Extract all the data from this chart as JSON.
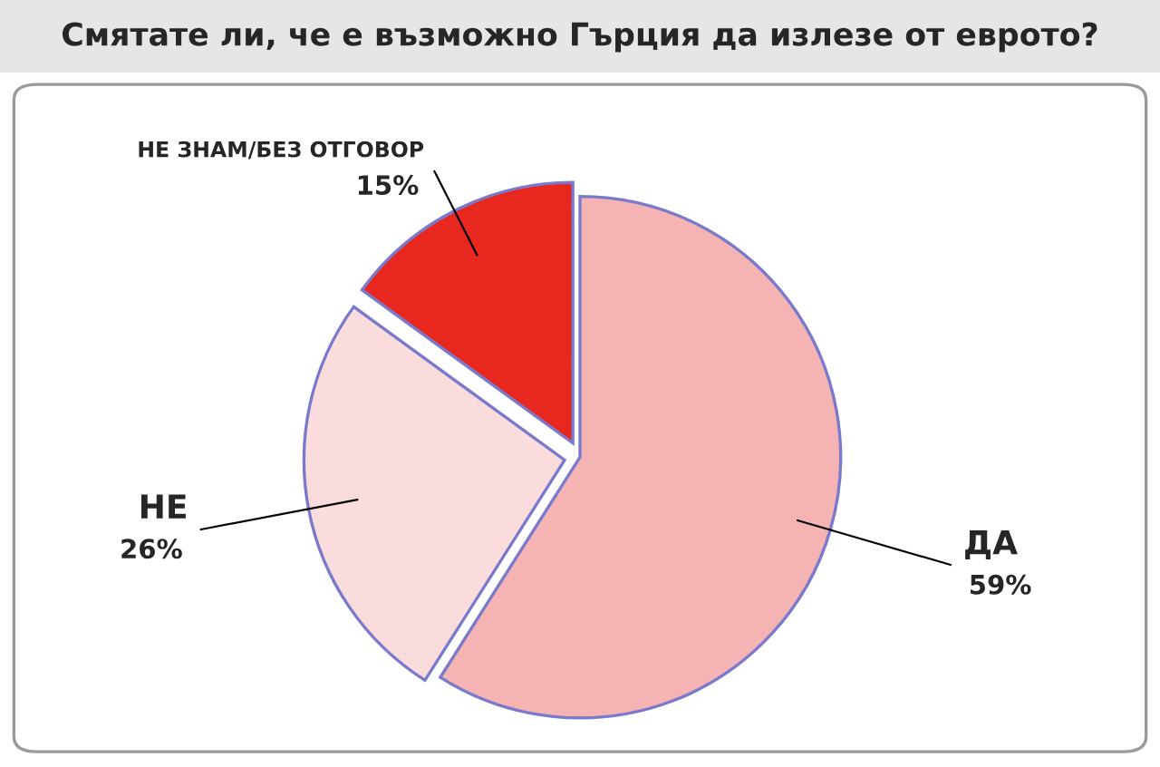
{
  "chart_data": {
    "type": "pie",
    "title": "Смятате ли, че е възможно Гърция да излезе от еврото?",
    "categories": [
      "ДА",
      "НЕ",
      "НЕ ЗНАМ/БЕЗ ОТГОВОР"
    ],
    "values": [
      59,
      26,
      15
    ],
    "value_labels": [
      "59%",
      "26%",
      "15%"
    ],
    "colors": [
      "#f5b3b3",
      "#fbdcdc",
      "#e8281e"
    ],
    "legend": false
  }
}
